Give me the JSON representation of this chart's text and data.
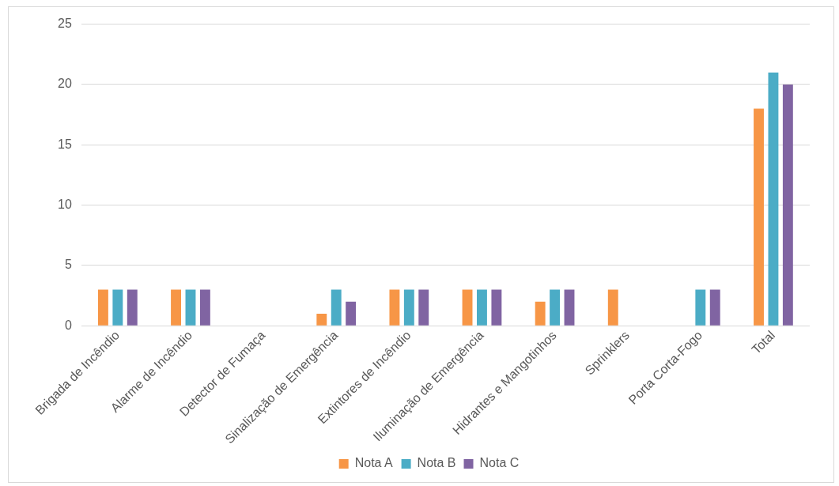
{
  "chart_data": {
    "type": "bar",
    "categories": [
      "Brigada de Incêndio",
      "Alarme de Incêndio",
      "Detector de Fumaça",
      "Sinalização de Emergência",
      "Extintores de Incêndio",
      "Iluminação de Emergência",
      "Hidrantes e Mangotinhos",
      "Sprinklers",
      "Porta Corta-Fogo",
      "Total"
    ],
    "series": [
      {
        "name": "Nota A",
        "color": "#f79646",
        "values": [
          3,
          3,
          0,
          1,
          3,
          3,
          2,
          3,
          0,
          18
        ]
      },
      {
        "name": "Nota B",
        "color": "#4bacc6",
        "values": [
          3,
          3,
          0,
          3,
          3,
          3,
          3,
          0,
          3,
          21
        ]
      },
      {
        "name": "Nota C",
        "color": "#8064a2",
        "values": [
          3,
          3,
          0,
          2,
          3,
          3,
          3,
          0,
          3,
          20
        ]
      }
    ],
    "ylim": [
      0,
      25
    ],
    "yticks": [
      0,
      5,
      10,
      15,
      20,
      25
    ],
    "grid": "y",
    "legend": "bottom"
  }
}
